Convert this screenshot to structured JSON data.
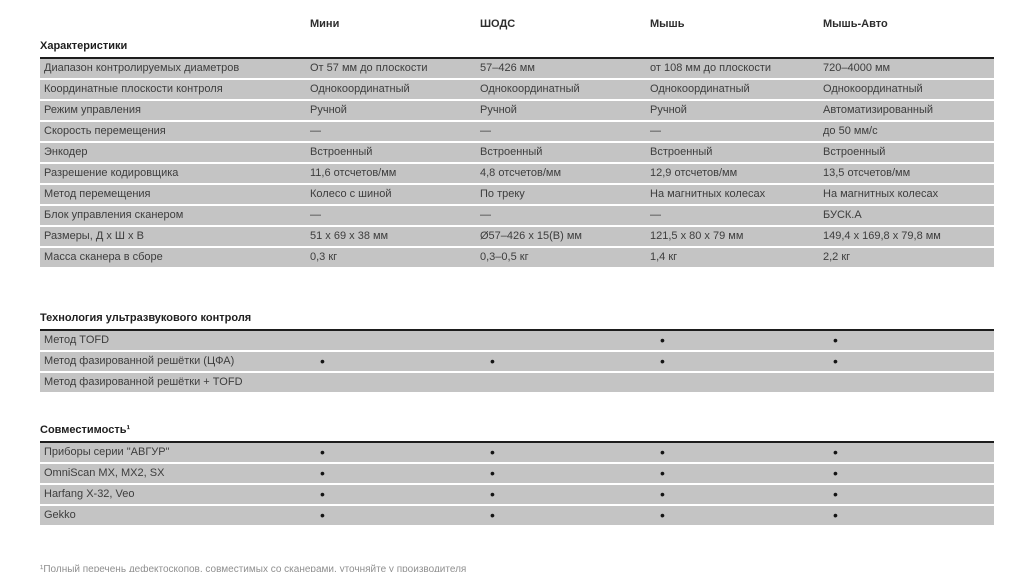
{
  "columns": [
    "",
    "Мини",
    "ШОДС",
    "Мышь",
    "Мышь-Авто"
  ],
  "sections": [
    {
      "title": "Характеристики",
      "rows": [
        {
          "label": "Диапазон контролируемых диаметров",
          "values": [
            "От 57 мм до плоскости",
            "57–426 мм",
            "от 108 мм до плоскости",
            "720–4000 мм"
          ]
        },
        {
          "label": "Координатные плоскости контроля",
          "values": [
            "Однокоординатный",
            "Однокоординатный",
            "Однокоординатный",
            "Однокоординатный"
          ]
        },
        {
          "label": "Режим управления",
          "values": [
            "Ручной",
            "Ручной",
            "Ручной",
            "Автоматизированный"
          ]
        },
        {
          "label": "Скорость перемещения",
          "values": [
            "—",
            "—",
            "—",
            "до 50 мм/с"
          ]
        },
        {
          "label": "Энкодер",
          "values": [
            "Встроенный",
            "Встроенный",
            "Встроенный",
            "Встроенный"
          ]
        },
        {
          "label": "Разрешение кодировщика",
          "values": [
            "11,6 отсчетов/мм",
            "4,8 отсчетов/мм",
            "12,9 отсчетов/мм",
            "13,5 отсчетов/мм"
          ]
        },
        {
          "label": "Метод перемещения",
          "values": [
            "Колесо с шиной",
            "По треку",
            "На магнитных колесах",
            "На магнитных колесах"
          ]
        },
        {
          "label": "Блок управления сканером",
          "values": [
            "—",
            "—",
            "—",
            "БУСК.А"
          ]
        },
        {
          "label": "Размеры, Д х Ш х В",
          "values": [
            "51 x 69 x 38 мм",
            "Ø57–426 x 15(В) мм",
            "121,5 x 80 x 79 мм",
            "149,4 x 169,8 x 79,8 мм"
          ]
        },
        {
          "label": "Масса сканера в сборе",
          "values": [
            "0,3 кг",
            "0,3–0,5 кг",
            "1,4 кг",
            "2,2 кг"
          ]
        }
      ]
    },
    {
      "title": "Технология ультразвукового контроля",
      "rows": [
        {
          "label": "Метод TOFD",
          "values": [
            "",
            "",
            "•",
            "•"
          ]
        },
        {
          "label": "Метод фазированной решётки (ЦФА)",
          "values": [
            "•",
            "•",
            "•",
            "•"
          ]
        },
        {
          "label": "Метод фазированной решётки + TOFD",
          "values": [
            "",
            "",
            "",
            ""
          ]
        }
      ]
    },
    {
      "title": "Совместимость¹",
      "rows": [
        {
          "label": "Приборы серии \"АВГУР\"",
          "values": [
            "•",
            "•",
            "•",
            "•"
          ]
        },
        {
          "label": "OmniScan MX, MX2, SX",
          "values": [
            "•",
            "•",
            "•",
            "•"
          ]
        },
        {
          "label": "Harfang X-32, Veo",
          "values": [
            "•",
            "•",
            "•",
            "•"
          ]
        },
        {
          "label": "Gekko",
          "values": [
            "•",
            "•",
            "•",
            "•"
          ]
        }
      ]
    }
  ],
  "footnote": "¹Полный перечень дефектоскопов, совместимых со сканерами, уточняйте у производителя",
  "colors": {
    "row_background": "#c4c4c4",
    "section_rule": "#1d1d1d",
    "text": "#3d3d3d"
  }
}
